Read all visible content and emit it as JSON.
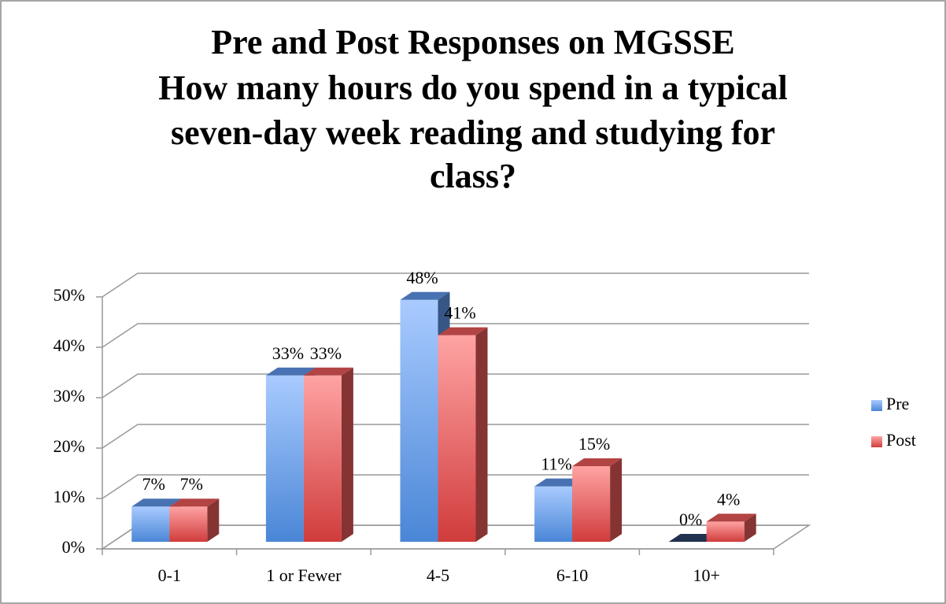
{
  "chart_data": {
    "type": "bar3d",
    "title": [
      "Pre and Post Responses on MGSSE",
      "How many hours do you spend in a typical",
      "seven-day week reading and studying for",
      "class?"
    ],
    "categories": [
      "0-1",
      "1 or Fewer",
      "4-5",
      "6-10",
      "10+"
    ],
    "series": [
      {
        "name": "Pre",
        "color": "#5b8fde",
        "values": [
          7,
          33,
          48,
          11,
          0
        ],
        "value_labels": [
          "7%",
          "33%",
          "48%",
          "11%",
          "0%"
        ]
      },
      {
        "name": "Post",
        "color": "#e05555",
        "values": [
          7,
          33,
          41,
          15,
          4
        ],
        "value_labels": [
          "7%",
          "33%",
          "41%",
          "15%",
          "4%"
        ]
      }
    ],
    "ylim": [
      0,
      50
    ],
    "yticks": [
      {
        "value": 0,
        "label": "0%"
      },
      {
        "value": 10,
        "label": "10%"
      },
      {
        "value": 20,
        "label": "20%"
      },
      {
        "value": 30,
        "label": "30%"
      },
      {
        "value": 40,
        "label": "40%"
      },
      {
        "value": 50,
        "label": "50%"
      }
    ],
    "grid": true,
    "legend": "right"
  }
}
